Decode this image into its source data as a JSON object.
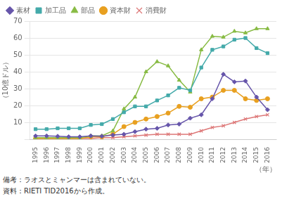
{
  "chart_data": {
    "type": "line",
    "x": [
      1995,
      1996,
      1997,
      1998,
      1999,
      2000,
      2001,
      2002,
      2003,
      2004,
      2005,
      2006,
      2007,
      2008,
      2009,
      2010,
      2011,
      2012,
      2013,
      2014,
      2015,
      2016
    ],
    "xlim": [
      1994.5,
      2016.8
    ],
    "xticks": [
      1995,
      1996,
      1997,
      1998,
      1999,
      2000,
      2001,
      2002,
      2003,
      2004,
      2005,
      2006,
      2007,
      2008,
      2009,
      2010,
      2011,
      2012,
      2013,
      2014,
      2015,
      2016
    ],
    "ylim": [
      0,
      70
    ],
    "yticks": [
      {
        "value": 0,
        "label": ""
      },
      10,
      20,
      30,
      40,
      50,
      60,
      70
    ],
    "ylabel": "（10億ドル）",
    "xlabel": "（年）",
    "annotations": [
      "備考：ラオスとミャンマーは含まれていない。",
      "資料：RIETI TID2016から作成。"
    ],
    "grid": "y",
    "legend": "upper left",
    "series": [
      {
        "name": "素材",
        "color": "#6655aa",
        "marker": "diamond",
        "values": [
          2.0,
          2.0,
          1.8,
          1.5,
          1.5,
          2.0,
          1.8,
          2.5,
          3.0,
          4.5,
          6.0,
          6.5,
          8.5,
          9.0,
          12.5,
          14.5,
          24.0,
          38.5,
          34.0,
          34.5,
          25.0,
          17.5
        ]
      },
      {
        "name": "加工品",
        "color": "#44aaaa",
        "marker": "square",
        "values": [
          6.0,
          6.0,
          6.5,
          6.5,
          6.5,
          8.5,
          9.0,
          12.0,
          16.0,
          19.5,
          19.5,
          23.0,
          26.0,
          30.5,
          29.0,
          42.5,
          53.0,
          55.0,
          59.0,
          60.0,
          54.0,
          51.0
        ]
      },
      {
        "name": "部品",
        "color": "#88bb44",
        "marker": "triangle",
        "values": [
          1.0,
          1.0,
          1.0,
          1.0,
          1.0,
          2.0,
          2.0,
          5.0,
          18.0,
          25.0,
          40.0,
          46.0,
          43.5,
          35.0,
          28.0,
          53.0,
          61.0,
          60.5,
          64.0,
          63.0,
          65.5,
          65.5
        ]
      },
      {
        "name": "資本財",
        "color": "#e8a020",
        "marker": "circle",
        "values": [
          0.5,
          0.5,
          0.5,
          0.5,
          0.5,
          1.5,
          1.5,
          3.0,
          7.5,
          10.0,
          12.0,
          13.5,
          15.5,
          19.5,
          19.0,
          24.0,
          25.0,
          29.0,
          29.0,
          24.0,
          23.0,
          24.0
        ]
      },
      {
        "name": "消費財",
        "color": "#dd7777",
        "marker": "x",
        "values": [
          0.5,
          0.5,
          0.5,
          0.5,
          0.5,
          0.5,
          1.0,
          1.0,
          1.5,
          2.0,
          2.5,
          3.0,
          3.0,
          3.0,
          3.0,
          5.0,
          7.0,
          8.0,
          10.0,
          12.0,
          13.5,
          14.5
        ]
      }
    ]
  }
}
